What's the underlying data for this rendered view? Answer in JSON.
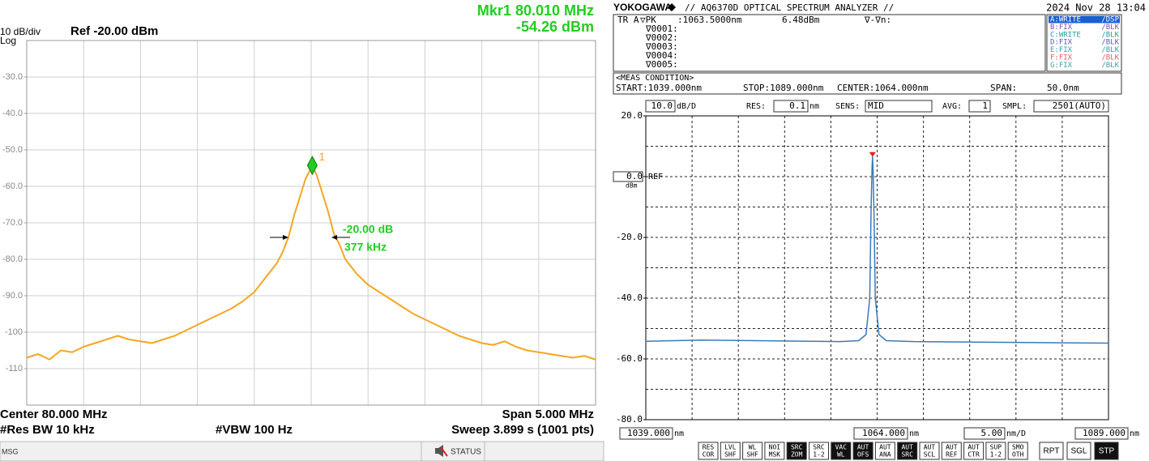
{
  "chart_data": [
    {
      "type": "line",
      "scale_label": "10 dB/div",
      "scale_type": "Log",
      "ref_label": "Ref -20.00 dBm",
      "marker_label": "Mkr1 80.010 MHz",
      "marker_value_label": "-54.26 dBm",
      "xlim": [
        77.5,
        82.5
      ],
      "ylim": [
        -120,
        -20
      ],
      "x_divisions": 10,
      "y_divisions": 10,
      "yticks": [
        {
          "value": -30,
          "label": "-30.0"
        },
        {
          "value": -40,
          "label": "-40.0"
        },
        {
          "value": -50,
          "label": "-50.0"
        },
        {
          "value": -60,
          "label": "-60.0"
        },
        {
          "value": -70,
          "label": "-70.0"
        },
        {
          "value": -80,
          "label": "-80.0"
        },
        {
          "value": -90,
          "label": "-90.0"
        },
        -100,
        -110
      ],
      "x": [
        77.5,
        77.6,
        77.7,
        77.8,
        77.9,
        78.0,
        78.1,
        78.2,
        78.3,
        78.4,
        78.5,
        78.6,
        78.7,
        78.8,
        78.9,
        79.0,
        79.1,
        79.2,
        79.3,
        79.4,
        79.5,
        79.6,
        79.7,
        79.75,
        79.8,
        79.85,
        79.9,
        79.95,
        80.0,
        80.01,
        80.05,
        80.1,
        80.15,
        80.2,
        80.25,
        80.3,
        80.4,
        80.5,
        80.6,
        80.7,
        80.8,
        80.9,
        81.0,
        81.1,
        81.2,
        81.3,
        81.4,
        81.5,
        81.6,
        81.7,
        81.8,
        81.9,
        82.0,
        82.1,
        82.2,
        82.3,
        82.4,
        82.5
      ],
      "series": [
        {
          "color": "#f5a623",
          "values": [
            -107,
            -106,
            -107.5,
            -105,
            -105.5,
            -104,
            -103,
            -102,
            -101,
            -102,
            -102.5,
            -103,
            -102,
            -101,
            -99.5,
            -98,
            -96.5,
            -95,
            -93.5,
            -91.5,
            -89,
            -85,
            -81,
            -78,
            -74,
            -68,
            -63,
            -58,
            -55,
            -54.3,
            -57,
            -62,
            -67,
            -73,
            -76,
            -80,
            -84,
            -87,
            -89,
            -91,
            -93,
            -95,
            -96.5,
            -98,
            -99.5,
            -101,
            -102,
            -103,
            -103.5,
            -102.5,
            -104,
            -105,
            -105.5,
            -106,
            -106.5,
            -107,
            -106.5,
            -107.5
          ]
        }
      ],
      "markers": [
        {
          "label": "1",
          "x": 80.01,
          "y": -54.26,
          "color": "#22cc22"
        }
      ],
      "delta_label": "-20.00 dB",
      "bandwidth_label": "377 kHz",
      "center": "Center 80.000 MHz",
      "span": "Span 5.000 MHz",
      "res_bw": "#Res BW 10 kHz",
      "vbw": "#VBW 100 Hz",
      "sweep": "Sweep  3.899 s (1001 pts)",
      "status_bar": [
        "MSG",
        "STATUS"
      ]
    },
    {
      "type": "line",
      "brand": "YOKOGAWA",
      "title": "// AQ6370D OPTICAL SPECTRUM ANALYZER //",
      "datetime": "2024 Nov 28 13:04",
      "trace_info": {
        "trace": "TR A",
        "mode": "▽PK",
        "wavelength": ":1063.5000nm",
        "level": "6.48dBm",
        "delta": "∇-∇n:",
        "markers": [
          "∇0001:",
          "∇0002:",
          "∇0003:",
          "∇0004:",
          "∇0005:"
        ]
      },
      "trace_states": [
        {
          "label": "A:WRITE",
          "state": "/DSP",
          "color": "#1a5fd0",
          "active": true
        },
        {
          "label": "B:FIX",
          "state": "/BLK",
          "color": "#7a4fc0",
          "active": false
        },
        {
          "label": "C:WRITE",
          "state": "/BLK",
          "color": "#2a9a9a",
          "active": false
        },
        {
          "label": "D:FIX",
          "state": "/BLK",
          "color": "#5a5acc",
          "active": false
        },
        {
          "label": "E:FIX",
          "state": "/BLK",
          "color": "#2aa0c0",
          "active": false
        },
        {
          "label": "F:FIX",
          "state": "/BLK",
          "color": "#e06060",
          "active": false
        },
        {
          "label": "G:FIX",
          "state": "/BLK",
          "color": "#40a0a0",
          "active": false
        }
      ],
      "meas_condition": {
        "heading": "<MEAS CONDITION>",
        "start": "START:1039.000nm",
        "stop": "STOP:1089.000nm",
        "center": "CENTER:1064.000nm",
        "span_label": "SPAN:",
        "span": "50.0nm"
      },
      "settings": {
        "scale": "10.0",
        "scale_unit": "dB/D",
        "res_label": "RES:",
        "res": "0.1",
        "res_unit": "nm",
        "sens_label": "SENS:",
        "sens": "MID",
        "avg_label": "AVG:",
        "avg": "1",
        "smpl_label": "SMPL:",
        "smpl": "2501(AUTO)"
      },
      "xlim": [
        1039,
        1089
      ],
      "ylim": [
        -80,
        20
      ],
      "x_divisions": 10,
      "y_divisions": 10,
      "ref_level": 0,
      "ref_text": "REF",
      "y_unit": "dBm",
      "yticks": [
        {
          "value": 20,
          "label": "20.0"
        },
        {
          "value": 0,
          "label": "0.0"
        },
        {
          "value": -20,
          "label": "-20.0"
        },
        {
          "value": -40,
          "label": "-40.0"
        },
        {
          "value": -60,
          "label": "-60.0"
        },
        {
          "value": -80,
          "label": "-80.0"
        }
      ],
      "x_start_label": "1039.000",
      "x_center_label": "1064.000",
      "x_div_label": "5.00",
      "x_end_label": "1089.000",
      "x_unit": "nm",
      "x_div_unit": "nm/D",
      "x": [
        1039,
        1042,
        1045,
        1048,
        1051,
        1054,
        1057,
        1060,
        1062,
        1062.8,
        1063.2,
        1063.35,
        1063.45,
        1063.5,
        1063.55,
        1063.65,
        1063.8,
        1064.2,
        1065,
        1068,
        1072,
        1076,
        1080,
        1084,
        1089
      ],
      "series": [
        {
          "color": "#3a7ab8",
          "values": [
            -54.2,
            -54.0,
            -53.8,
            -53.9,
            -54.0,
            -54.1,
            -54.2,
            -54.3,
            -54.0,
            -52,
            -40,
            -10,
            3,
            6.48,
            3,
            -10,
            -40,
            -52,
            -54,
            -54.3,
            -54.4,
            -54.5,
            -54.6,
            -54.7,
            -54.8
          ]
        }
      ],
      "peak_marker": {
        "x": 1063.5,
        "y": 6.48,
        "color": "#e02020"
      },
      "buttons": [
        {
          "top": "RES",
          "bottom": "COR",
          "active": false
        },
        {
          "top": "LVL",
          "bottom": "SHF",
          "active": false
        },
        {
          "top": "WL",
          "bottom": "SHF",
          "active": false
        },
        {
          "top": "NOI",
          "bottom": "MSK",
          "active": false
        },
        {
          "top": "SRC",
          "bottom": "ZOM",
          "active": true
        },
        {
          "top": "SRC",
          "bottom": "1-2",
          "active": false
        },
        {
          "top": "VAC",
          "bottom": "WL",
          "active": true
        },
        {
          "top": "AUT",
          "bottom": "OFS",
          "active": true
        },
        {
          "top": "AUT",
          "bottom": "ANA",
          "active": false
        },
        {
          "top": "AUT",
          "bottom": "SRC",
          "active": true
        },
        {
          "top": "AUT",
          "bottom": "SCL",
          "active": false
        },
        {
          "top": "AUT",
          "bottom": "REF",
          "active": false
        },
        {
          "top": "AUT",
          "bottom": "CTR",
          "active": false
        },
        {
          "top": "SUP",
          "bottom": "1-2",
          "active": false
        },
        {
          "top": "SMO",
          "bottom": "OTH",
          "active": false
        }
      ],
      "run_buttons": [
        {
          "label": "RPT",
          "active": false
        },
        {
          "label": "SGL",
          "active": false
        },
        {
          "label": "STP",
          "active": true
        }
      ]
    }
  ]
}
